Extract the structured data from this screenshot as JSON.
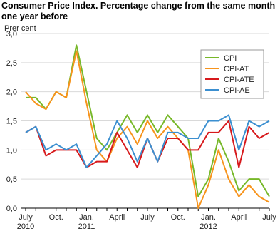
{
  "chart_data": {
    "type": "line",
    "title": "Consumer Price Index. Percentage change from the same month one year before",
    "y_label": "Prer cent",
    "categories": [
      "July\n2010",
      null,
      null,
      "Oct.",
      null,
      null,
      "Jan.\n2011",
      null,
      null,
      "April",
      null,
      null,
      "July",
      null,
      null,
      "Oct.",
      null,
      null,
      "Jan.\n2012",
      null,
      null,
      "April",
      null,
      null,
      "July"
    ],
    "series": [
      {
        "name": "CPI",
        "color": "#77b829",
        "values": [
          1.9,
          1.9,
          1.7,
          2.0,
          1.9,
          2.8,
          2.0,
          1.2,
          1.0,
          1.3,
          1.6,
          1.3,
          1.6,
          1.3,
          1.6,
          1.4,
          1.2,
          0.2,
          0.5,
          1.2,
          0.8,
          0.3,
          0.5,
          0.5,
          0.2
        ]
      },
      {
        "name": "CPI-AT",
        "color": "#f7941d",
        "values": [
          2.0,
          1.8,
          1.7,
          2.0,
          1.9,
          2.7,
          1.8,
          1.0,
          0.8,
          1.2,
          1.4,
          1.1,
          1.5,
          1.2,
          1.4,
          1.2,
          1.0,
          0.0,
          0.4,
          1.0,
          0.5,
          0.2,
          0.4,
          0.2,
          0.1
        ]
      },
      {
        "name": "CPI-ATE",
        "color": "#d7191c",
        "values": [
          1.3,
          1.4,
          0.9,
          1.0,
          1.0,
          1.0,
          0.7,
          0.8,
          0.8,
          1.3,
          1.0,
          0.7,
          1.2,
          0.8,
          1.2,
          1.2,
          1.0,
          1.0,
          1.3,
          1.3,
          1.5,
          0.7,
          1.4,
          1.2,
          1.3
        ]
      },
      {
        "name": "CPI-AE",
        "color": "#3b8fd0",
        "values": [
          1.3,
          1.4,
          1.0,
          1.1,
          1.0,
          1.1,
          0.7,
          0.9,
          1.1,
          1.5,
          1.2,
          0.8,
          1.2,
          0.8,
          1.3,
          1.3,
          1.2,
          1.2,
          1.5,
          1.5,
          1.6,
          1.0,
          1.5,
          1.4,
          1.5
        ]
      }
    ],
    "ylim": [
      0,
      3
    ],
    "yticks": [
      {
        "value": 0,
        "label": "0,0"
      },
      {
        "value": 0.5,
        "label": "0,5"
      },
      {
        "value": 1,
        "label": "1,0"
      },
      {
        "value": 1.5,
        "label": "1,5"
      },
      {
        "value": 2,
        "label": "2,0"
      },
      {
        "value": 2.5,
        "label": "2,5"
      },
      {
        "value": 3,
        "label": "3,0"
      }
    ],
    "grid": true
  }
}
